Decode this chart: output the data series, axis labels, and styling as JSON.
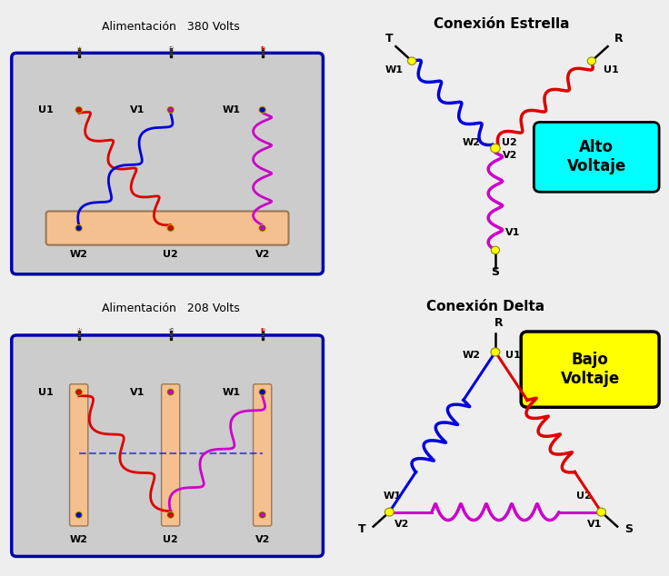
{
  "bg_color": "#eeeeee",
  "title_380": "Alimentación   380 Volts",
  "title_208": "Alimentación   208 Volts",
  "title_estrella": "Conexión Estrella",
  "title_delta": "Conexión Delta",
  "alto_voltaje": "Alto\nVoltaje",
  "bajo_voltaje": "Bajo\nVoltaje",
  "color_red": "#dd0000",
  "color_blue": "#0000dd",
  "color_magenta": "#cc00cc",
  "color_yellow": "#ffff00",
  "color_cyan": "#00ffff",
  "color_box_border": "#0000aa",
  "color_box_fill": "#cccccc",
  "color_bus": "#f5c090",
  "color_post_dark": "#222222",
  "color_post_brown": "#7B3F00",
  "color_post_red": "#cc0000",
  "color_terminal_gold": "#ddaa00",
  "color_terminal_gold2": "#ccaa00"
}
